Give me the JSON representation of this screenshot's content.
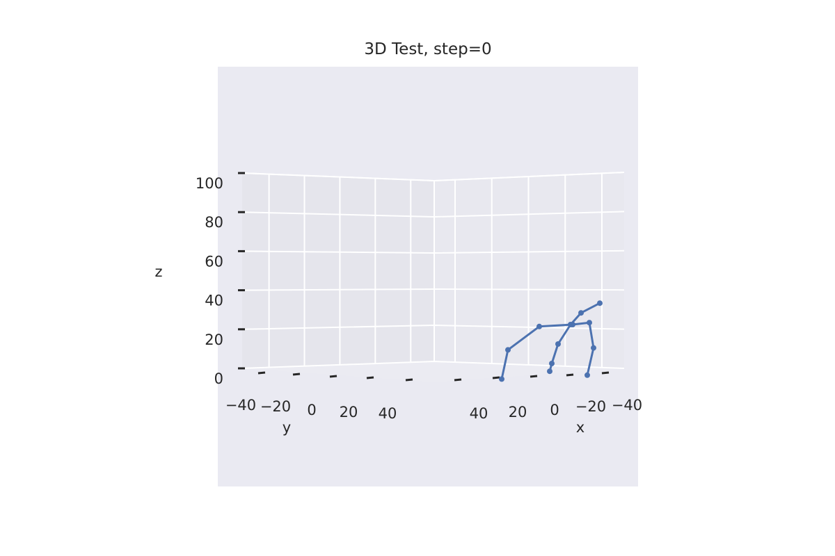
{
  "chart_data": {
    "type": "line3d",
    "title": "3D Test, step=0",
    "xlabel": "x",
    "ylabel": "y",
    "zlabel": "z",
    "x_ticks": [
      "40",
      "20",
      "0",
      "−20",
      "−40"
    ],
    "y_ticks": [
      "−40",
      "−20",
      "0",
      "20",
      "40"
    ],
    "z_ticks": [
      "100",
      "80",
      "60",
      "40",
      "20",
      "0"
    ],
    "zlim": [
      0,
      100
    ],
    "grid": true,
    "series": [
      {
        "color": "#4c72b0",
        "points": [
          {
            "x": 23,
            "y": 45,
            "z": -3
          },
          {
            "x": 20,
            "y": 45,
            "z": 12
          },
          {
            "x": 5,
            "y": 45,
            "z": 24
          },
          {
            "x": -11,
            "y": 45,
            "z": 25
          },
          {
            "x": -19,
            "y": 45,
            "z": 26
          },
          {
            "x": -21,
            "y": 45,
            "z": 13
          },
          {
            "x": -18,
            "y": 45,
            "z": -1
          },
          {
            "x": 0,
            "y": 45,
            "z": 1
          },
          {
            "x": -1,
            "y": 45,
            "z": 5
          },
          {
            "x": -4,
            "y": 45,
            "z": 15
          },
          {
            "x": -10,
            "y": 45,
            "z": 25
          },
          {
            "x": -15,
            "y": 45,
            "z": 31
          },
          {
            "x": -24,
            "y": 45,
            "z": 36
          }
        ],
        "segments": [
          [
            0,
            1
          ],
          [
            1,
            2
          ],
          [
            2,
            3
          ],
          [
            3,
            4
          ],
          [
            4,
            5
          ],
          [
            5,
            6
          ],
          [
            7,
            8
          ],
          [
            8,
            9
          ],
          [
            9,
            10
          ],
          [
            10,
            11
          ],
          [
            11,
            12
          ]
        ]
      }
    ]
  }
}
